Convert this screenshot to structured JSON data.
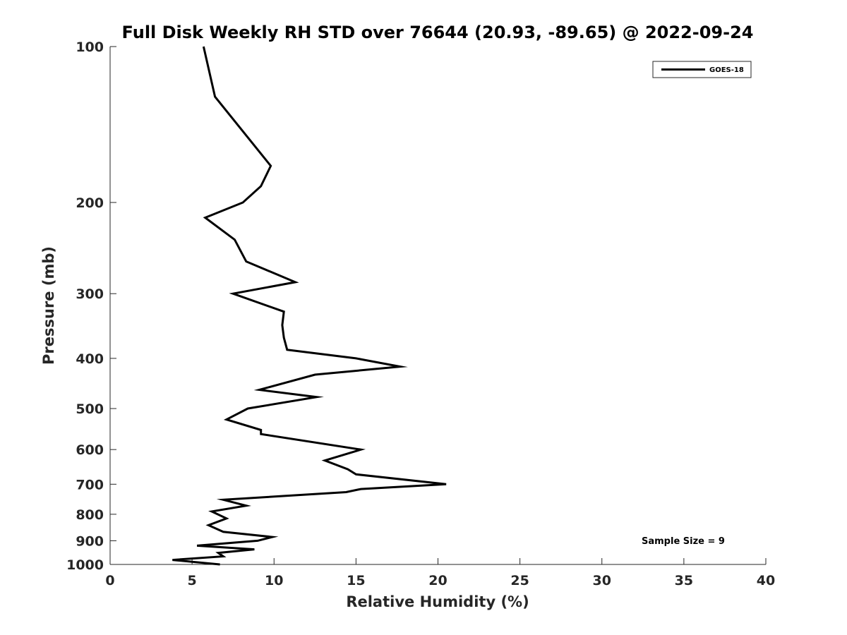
{
  "chart_data": {
    "type": "line",
    "title": "Full Disk Weekly RH STD over 76644 (20.93, -89.65) @ 2022-09-24",
    "xlabel": "Relative Humidity (%)",
    "ylabel": "Pressure (mb)",
    "xlim": [
      0,
      40
    ],
    "ylim": [
      100,
      1000
    ],
    "yscale": "log",
    "y_reversed": true,
    "grid": false,
    "x_ticks": [
      0,
      5,
      10,
      15,
      20,
      25,
      30,
      35,
      40
    ],
    "y_ticks": [
      100,
      200,
      300,
      400,
      500,
      600,
      700,
      800,
      900,
      1000
    ],
    "legend": {
      "position": "top-right",
      "entries": [
        "GOES-18"
      ]
    },
    "annotation": "Sample Size = 9",
    "series": [
      {
        "name": "GOES-18",
        "color": "#000000",
        "x": [
          5.7,
          6.4,
          9.8,
          9.2,
          8.1,
          5.8,
          7.6,
          8.3,
          11.3,
          7.5,
          10.6,
          10.5,
          10.6,
          10.8,
          15.0,
          17.7,
          12.5,
          9.1,
          12.6,
          8.4,
          7.1,
          9.2,
          9.2,
          15.3,
          13.1,
          14.5,
          15.0,
          20.5,
          15.3,
          14.4,
          6.9,
          8.3,
          6.2,
          7.1,
          6.0,
          6.9,
          9.9,
          9.0,
          5.3,
          8.8,
          6.6,
          6.9,
          3.8,
          6.7
        ],
        "y": [
          100,
          125,
          170,
          186,
          200,
          214,
          236,
          260,
          285,
          300,
          325,
          345,
          365,
          385,
          400,
          415,
          430,
          460,
          475,
          500,
          525,
          550,
          560,
          600,
          630,
          655,
          670,
          700,
          715,
          725,
          750,
          770,
          790,
          815,
          840,
          865,
          885,
          900,
          920,
          935,
          950,
          965,
          980,
          1000
        ]
      }
    ]
  }
}
